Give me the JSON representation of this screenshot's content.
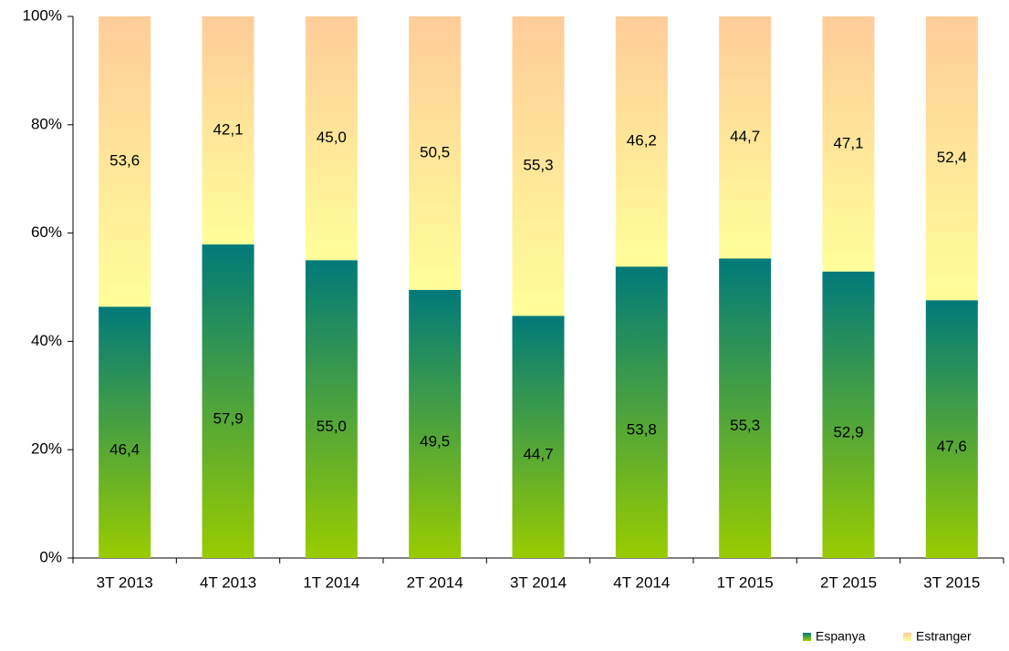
{
  "chart_data": {
    "type": "stacked_bar",
    "categories": [
      "3T 2013",
      "4T 2013",
      "1T 2014",
      "2T 2014",
      "3T 2014",
      "4T 2014",
      "1T 2015",
      "2T 2015",
      "3T 2015"
    ],
    "series": [
      {
        "name": "Espanya",
        "color": "#2e8b3e",
        "gradient": [
          "#99cc00",
          "#007a7a"
        ],
        "values": [
          46.4,
          57.9,
          55.0,
          49.5,
          44.7,
          53.8,
          55.3,
          52.9,
          47.6
        ],
        "value_labels": [
          "46,4",
          "57,9",
          "55,0",
          "49,5",
          "44,7",
          "53,8",
          "55,3",
          "52,9",
          "47,6"
        ]
      },
      {
        "name": "Estranger",
        "color": "#ffdd88",
        "gradient": [
          "#ffff99",
          "#ffcc99"
        ],
        "values": [
          53.6,
          42.1,
          45.0,
          50.5,
          55.3,
          46.2,
          44.7,
          47.1,
          52.4
        ],
        "value_labels": [
          "53,6",
          "42,1",
          "45,0",
          "50,5",
          "55,3",
          "46,2",
          "44,7",
          "47,1",
          "52,4"
        ]
      }
    ],
    "ylim": [
      0,
      100
    ],
    "yticks": [
      {
        "value": 0,
        "label": "0%"
      },
      {
        "value": 20,
        "label": "20%"
      },
      {
        "value": 40,
        "label": "40%"
      },
      {
        "value": 60,
        "label": "60%"
      },
      {
        "value": 80,
        "label": "80%"
      },
      {
        "value": 100,
        "label": "100%"
      }
    ],
    "legend": "bottom-right"
  }
}
